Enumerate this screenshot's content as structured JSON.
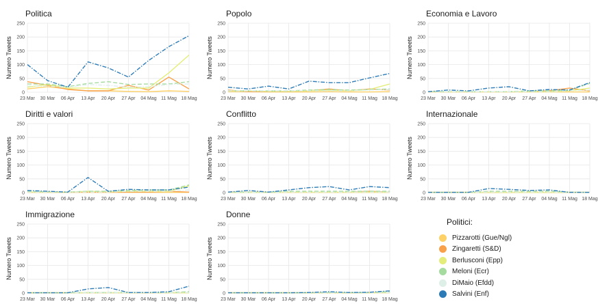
{
  "chart_data": {
    "type": "line",
    "ylabel": "Numero Tweets",
    "ylim": [
      0,
      250
    ],
    "yticks": [
      "0",
      "50",
      "100",
      "150",
      "200",
      "250"
    ],
    "xticks": [
      "23 Mar",
      "30 Mar",
      "06 Apr",
      "13 Apr",
      "20 Apr",
      "27 Apr",
      "04 Mag",
      "11 Mag",
      "18 Mag"
    ],
    "legend_title": "Politici:",
    "series": [
      {
        "name": "Pizzarotti (Gue/Ngl)",
        "color": "#fdd166",
        "dash": "solid"
      },
      {
        "name": "Zingaretti (S&D)",
        "color": "#f8a14a",
        "dash": "solid"
      },
      {
        "name": "Berlusconi (Epp)",
        "color": "#e4ed7a",
        "dash": "solid"
      },
      {
        "name": "Meloni (Ecr)",
        "color": "#a6dba0",
        "dash": "longdash"
      },
      {
        "name": "DiMaio (Efdd)",
        "color": "#deefe8",
        "dash": "dashdot"
      },
      {
        "name": "Salvini (Enf)",
        "color": "#2c7bb6",
        "dash": "dashdot"
      }
    ],
    "panels": [
      {
        "title": "Politica",
        "values": [
          [
            12,
            20,
            12,
            5,
            5,
            3,
            2,
            5,
            3
          ],
          [
            38,
            25,
            10,
            5,
            5,
            25,
            8,
            55,
            12
          ],
          [
            18,
            28,
            15,
            15,
            12,
            15,
            15,
            70,
            135
          ],
          [
            30,
            30,
            20,
            32,
            38,
            28,
            30,
            30,
            38
          ],
          [
            22,
            22,
            18,
            28,
            25,
            18,
            20,
            28,
            30
          ],
          [
            100,
            42,
            18,
            110,
            88,
            55,
            115,
            165,
            205
          ]
        ]
      },
      {
        "title": "Popolo",
        "values": [
          [
            2,
            2,
            1,
            1,
            1,
            2,
            1,
            1,
            2
          ],
          [
            8,
            2,
            2,
            2,
            5,
            12,
            5,
            12,
            8
          ],
          [
            5,
            5,
            3,
            3,
            5,
            8,
            5,
            10,
            30
          ],
          [
            5,
            5,
            5,
            5,
            8,
            10,
            8,
            10,
            12
          ],
          [
            5,
            5,
            5,
            5,
            5,
            5,
            5,
            8,
            10
          ],
          [
            18,
            12,
            22,
            12,
            40,
            35,
            35,
            52,
            68
          ]
        ]
      },
      {
        "title": "Economia e Lavoro",
        "values": [
          [
            1,
            1,
            1,
            1,
            1,
            1,
            1,
            1,
            1
          ],
          [
            2,
            2,
            2,
            2,
            2,
            2,
            5,
            15,
            5
          ],
          [
            2,
            2,
            2,
            2,
            2,
            2,
            2,
            5,
            15
          ],
          [
            2,
            2,
            2,
            2,
            2,
            5,
            5,
            8,
            32
          ],
          [
            2,
            2,
            2,
            2,
            2,
            2,
            2,
            5,
            8
          ],
          [
            2,
            8,
            5,
            15,
            20,
            5,
            10,
            8,
            35
          ]
        ]
      },
      {
        "title": "Diritti e valori",
        "values": [
          [
            1,
            1,
            1,
            1,
            1,
            1,
            1,
            1,
            1
          ],
          [
            2,
            2,
            2,
            2,
            2,
            2,
            2,
            5,
            2
          ],
          [
            2,
            2,
            2,
            5,
            3,
            5,
            5,
            5,
            25
          ],
          [
            5,
            3,
            2,
            5,
            5,
            8,
            10,
            10,
            28
          ],
          [
            2,
            2,
            2,
            2,
            2,
            5,
            5,
            5,
            10
          ],
          [
            8,
            5,
            2,
            55,
            5,
            12,
            10,
            10,
            20
          ]
        ]
      },
      {
        "title": "Conflitto",
        "values": [
          [
            1,
            1,
            1,
            1,
            1,
            1,
            1,
            1,
            1
          ],
          [
            2,
            2,
            2,
            2,
            2,
            2,
            2,
            5,
            2
          ],
          [
            1,
            1,
            1,
            2,
            2,
            2,
            2,
            2,
            2
          ],
          [
            2,
            2,
            2,
            5,
            5,
            5,
            5,
            5,
            5
          ],
          [
            1,
            1,
            1,
            2,
            2,
            2,
            2,
            2,
            2
          ],
          [
            2,
            8,
            2,
            10,
            18,
            22,
            10,
            22,
            18
          ]
        ]
      },
      {
        "title": "Internazionale",
        "values": [
          [
            1,
            1,
            1,
            1,
            1,
            1,
            1,
            1,
            1
          ],
          [
            1,
            1,
            1,
            1,
            1,
            2,
            1,
            1,
            1
          ],
          [
            1,
            1,
            1,
            1,
            1,
            1,
            1,
            1,
            1
          ],
          [
            1,
            1,
            1,
            5,
            5,
            5,
            5,
            2,
            1
          ],
          [
            1,
            1,
            1,
            2,
            2,
            2,
            2,
            1,
            1
          ],
          [
            1,
            1,
            1,
            15,
            12,
            8,
            10,
            1,
            1
          ]
        ]
      },
      {
        "title": "Immigrazione",
        "values": [
          [
            1,
            1,
            1,
            1,
            1,
            1,
            1,
            1,
            1
          ],
          [
            1,
            1,
            1,
            1,
            1,
            1,
            1,
            1,
            2
          ],
          [
            1,
            1,
            1,
            1,
            1,
            1,
            1,
            1,
            1
          ],
          [
            1,
            1,
            1,
            2,
            2,
            2,
            2,
            2,
            5
          ],
          [
            1,
            1,
            1,
            1,
            1,
            1,
            1,
            1,
            2
          ],
          [
            1,
            1,
            1,
            15,
            20,
            2,
            2,
            5,
            25
          ]
        ]
      },
      {
        "title": "Donne",
        "values": [
          [
            1,
            1,
            1,
            1,
            1,
            1,
            1,
            1,
            1
          ],
          [
            1,
            1,
            1,
            1,
            1,
            1,
            1,
            2,
            2
          ],
          [
            1,
            1,
            1,
            1,
            1,
            1,
            1,
            1,
            2
          ],
          [
            1,
            1,
            1,
            1,
            1,
            2,
            2,
            2,
            5
          ],
          [
            1,
            1,
            1,
            1,
            1,
            1,
            1,
            1,
            2
          ],
          [
            1,
            1,
            1,
            1,
            2,
            5,
            2,
            3,
            8
          ]
        ]
      }
    ]
  }
}
